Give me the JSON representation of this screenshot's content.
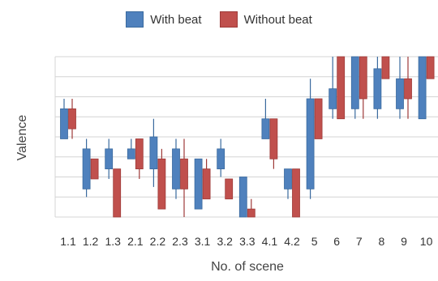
{
  "chart_data": {
    "type": "box",
    "title": "",
    "xlabel": "No. of scene",
    "ylabel": "Valence",
    "ylim": [
      0,
      8
    ],
    "grid": true,
    "legend_position": "top-center",
    "categories": [
      "1.1",
      "1.2",
      "1.3",
      "2.1",
      "2.2",
      "2.3",
      "3.1",
      "3.2",
      "3.3",
      "4.1",
      "4.2",
      "5",
      "6",
      "7",
      "8",
      "9",
      "10"
    ],
    "series": [
      {
        "name": "With beat",
        "color": "#4f81bd",
        "boxes": [
          {
            "q1": 3.9,
            "q3": 5.4,
            "min": 3.9,
            "max": 5.9
          },
          {
            "q1": 1.4,
            "q3": 3.4,
            "min": 1.0,
            "max": 3.9
          },
          {
            "q1": 2.4,
            "q3": 3.4,
            "min": 1.9,
            "max": 3.9
          },
          {
            "q1": 2.9,
            "q3": 3.4,
            "min": 2.9,
            "max": 3.9
          },
          {
            "q1": 2.4,
            "q3": 4.0,
            "min": 1.5,
            "max": 4.9
          },
          {
            "q1": 1.4,
            "q3": 3.4,
            "min": 0.9,
            "max": 3.9
          },
          {
            "q1": 0.4,
            "q3": 2.9,
            "min": 0.4,
            "max": 2.9
          },
          {
            "q1": 2.4,
            "q3": 3.4,
            "min": 2.0,
            "max": 3.9
          },
          {
            "q1": 0.0,
            "q3": 2.0,
            "min": 0.0,
            "max": 2.0
          },
          {
            "q1": 3.9,
            "q3": 4.9,
            "min": 3.9,
            "max": 5.9
          },
          {
            "q1": 1.4,
            "q3": 2.4,
            "min": 0.9,
            "max": 2.4
          },
          {
            "q1": 1.4,
            "q3": 5.9,
            "min": 0.9,
            "max": 6.9
          },
          {
            "q1": 5.4,
            "q3": 6.4,
            "min": 4.9,
            "max": 8.0
          },
          {
            "q1": 5.4,
            "q3": 8.0,
            "min": 4.9,
            "max": 8.0
          },
          {
            "q1": 5.4,
            "q3": 7.4,
            "min": 4.9,
            "max": 8.0
          },
          {
            "q1": 5.4,
            "q3": 6.9,
            "min": 4.9,
            "max": 8.0
          },
          {
            "q1": 4.9,
            "q3": 8.0,
            "min": 4.9,
            "max": 8.0
          }
        ]
      },
      {
        "name": "Without beat",
        "color": "#c0504d",
        "boxes": [
          {
            "q1": 4.4,
            "q3": 5.4,
            "min": 3.9,
            "max": 5.9
          },
          {
            "q1": 1.9,
            "q3": 2.9,
            "min": 1.9,
            "max": 2.9
          },
          {
            "q1": 0.0,
            "q3": 2.4,
            "min": 0.0,
            "max": 2.4
          },
          {
            "q1": 2.4,
            "q3": 3.9,
            "min": 1.9,
            "max": 3.9
          },
          {
            "q1": 0.4,
            "q3": 2.9,
            "min": 0.4,
            "max": 3.4
          },
          {
            "q1": 1.4,
            "q3": 2.9,
            "min": 0.0,
            "max": 3.9
          },
          {
            "q1": 0.9,
            "q3": 2.4,
            "min": 0.9,
            "max": 2.9
          },
          {
            "q1": 0.9,
            "q3": 1.9,
            "min": 0.9,
            "max": 1.9
          },
          {
            "q1": 0.0,
            "q3": 0.4,
            "min": 0.0,
            "max": 0.9
          },
          {
            "q1": 2.9,
            "q3": 4.9,
            "min": 2.4,
            "max": 4.9
          },
          {
            "q1": 0.0,
            "q3": 2.4,
            "min": 0.0,
            "max": 2.4
          },
          {
            "q1": 3.9,
            "q3": 5.9,
            "min": 3.9,
            "max": 5.9
          },
          {
            "q1": 4.9,
            "q3": 8.0,
            "min": 4.9,
            "max": 8.0
          },
          {
            "q1": 5.9,
            "q3": 8.0,
            "min": 4.9,
            "max": 8.0
          },
          {
            "q1": 6.9,
            "q3": 8.0,
            "min": 6.9,
            "max": 8.0
          },
          {
            "q1": 5.9,
            "q3": 6.9,
            "min": 4.9,
            "max": 8.0
          },
          {
            "q1": 6.9,
            "q3": 8.0,
            "min": 6.9,
            "max": 8.0
          }
        ]
      }
    ]
  }
}
